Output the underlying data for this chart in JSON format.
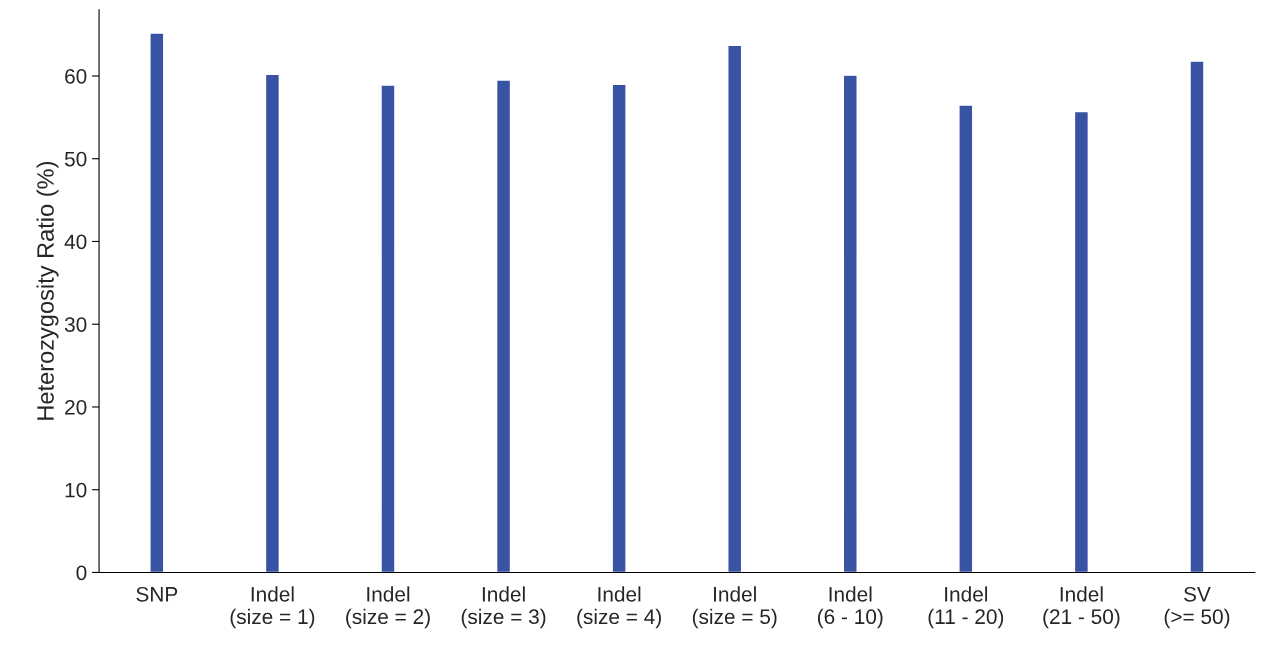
{
  "chart_data": {
    "type": "bar",
    "ylabel": "Heterozygosity Ratio (%)",
    "categories": [
      "SNP",
      "Indel\n(size = 1)",
      "Indel\n(size = 2)",
      "Indel\n(size = 3)",
      "Indel\n(size = 4)",
      "Indel\n(size = 5)",
      "Indel\n(6 - 10)",
      "Indel\n(11 - 20)",
      "Indel\n(21 - 50)",
      "SV\n(>= 50)"
    ],
    "values": [
      65.2,
      60.2,
      58.9,
      59.5,
      59.0,
      63.7,
      60.1,
      56.5,
      55.7,
      61.8
    ],
    "color": "#3953a4",
    "ylim": [
      0,
      68
    ],
    "yticks": [
      0,
      10,
      20,
      30,
      40,
      50,
      60
    ],
    "grid": false,
    "legend": false
  }
}
